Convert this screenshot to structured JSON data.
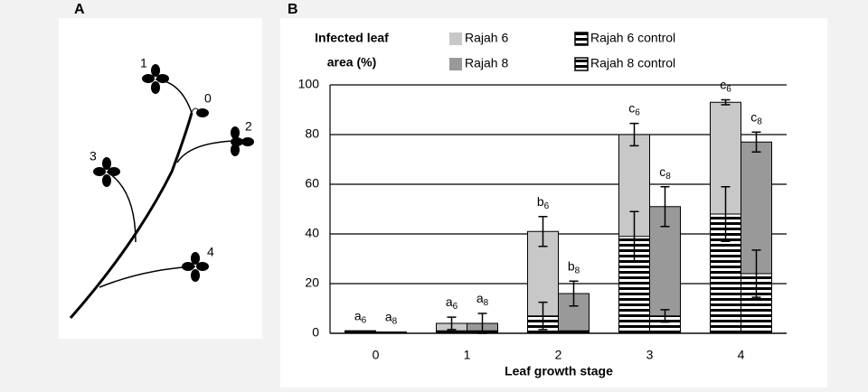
{
  "panel_a": {
    "label": "A",
    "leaf_labels": [
      "1",
      "0",
      "2",
      "3",
      "4"
    ]
  },
  "chart_data": {
    "type": "bar",
    "label": "B",
    "y_label": [
      "Infected leaf",
      "area (%)"
    ],
    "x_label": "Leaf growth stage",
    "categories": [
      "0",
      "1",
      "2",
      "3",
      "4"
    ],
    "ylim": [
      0,
      100
    ],
    "yticks": [
      0,
      20,
      40,
      60,
      80,
      100
    ],
    "grid": true,
    "series": [
      {
        "name": "Rajah 6",
        "color": "#c8c8c8",
        "hatch": false,
        "slot": "left",
        "values": [
          1,
          4,
          41,
          80,
          93
        ],
        "errors": [
          null,
          2.5,
          6,
          4.5,
          1
        ],
        "annotations": [
          {
            "letter": "a",
            "sub": "6"
          },
          {
            "letter": "a",
            "sub": "6"
          },
          {
            "letter": "b",
            "sub": "6"
          },
          {
            "letter": "c",
            "sub": "6"
          },
          {
            "letter": "c",
            "sub": "6"
          }
        ]
      },
      {
        "name": "Rajah 8",
        "color": "#999999",
        "hatch": false,
        "slot": "right",
        "values": [
          0.5,
          4,
          16,
          51,
          77
        ],
        "errors": [
          null,
          4,
          5,
          8,
          4
        ],
        "annotations": [
          {
            "letter": "a",
            "sub": "8"
          },
          {
            "letter": "a",
            "sub": "8"
          },
          {
            "letter": "b",
            "sub": "8"
          },
          {
            "letter": "c",
            "sub": "8"
          },
          {
            "letter": "c",
            "sub": "8"
          }
        ]
      },
      {
        "name": "Rajah 6 control",
        "color": "#000000",
        "hatch": true,
        "slot": "left",
        "values": [
          1,
          1,
          7,
          39,
          48
        ],
        "errors": [
          null,
          null,
          5.5,
          10,
          11
        ]
      },
      {
        "name": "Rajah 8 control",
        "color": "#000000",
        "hatch": true,
        "slot": "right",
        "values": [
          0.5,
          1,
          1,
          7,
          24
        ],
        "errors": [
          null,
          null,
          null,
          2.5,
          9.5
        ]
      }
    ]
  }
}
